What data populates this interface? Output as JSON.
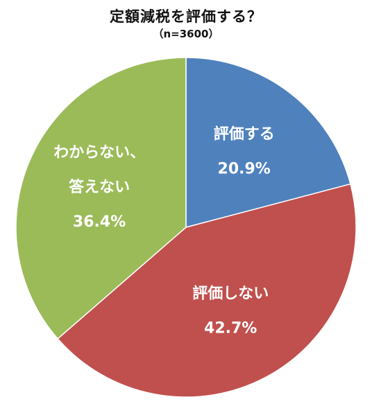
{
  "chart_data": {
    "type": "pie",
    "title": "定額減税を評価する？",
    "subtitle": "（n=3600）",
    "slices": [
      {
        "label_lines": [
          "評価する"
        ],
        "value": 20.9,
        "value_label": "20.9%",
        "color": "#4f81bd"
      },
      {
        "label_lines": [
          "評価しない"
        ],
        "value": 42.7,
        "value_label": "42.7%",
        "color": "#c0504d"
      },
      {
        "label_lines": [
          "わからない、",
          "答えない"
        ],
        "value": 36.4,
        "value_label": "36.4%",
        "color": "#9bbb59"
      }
    ]
  }
}
